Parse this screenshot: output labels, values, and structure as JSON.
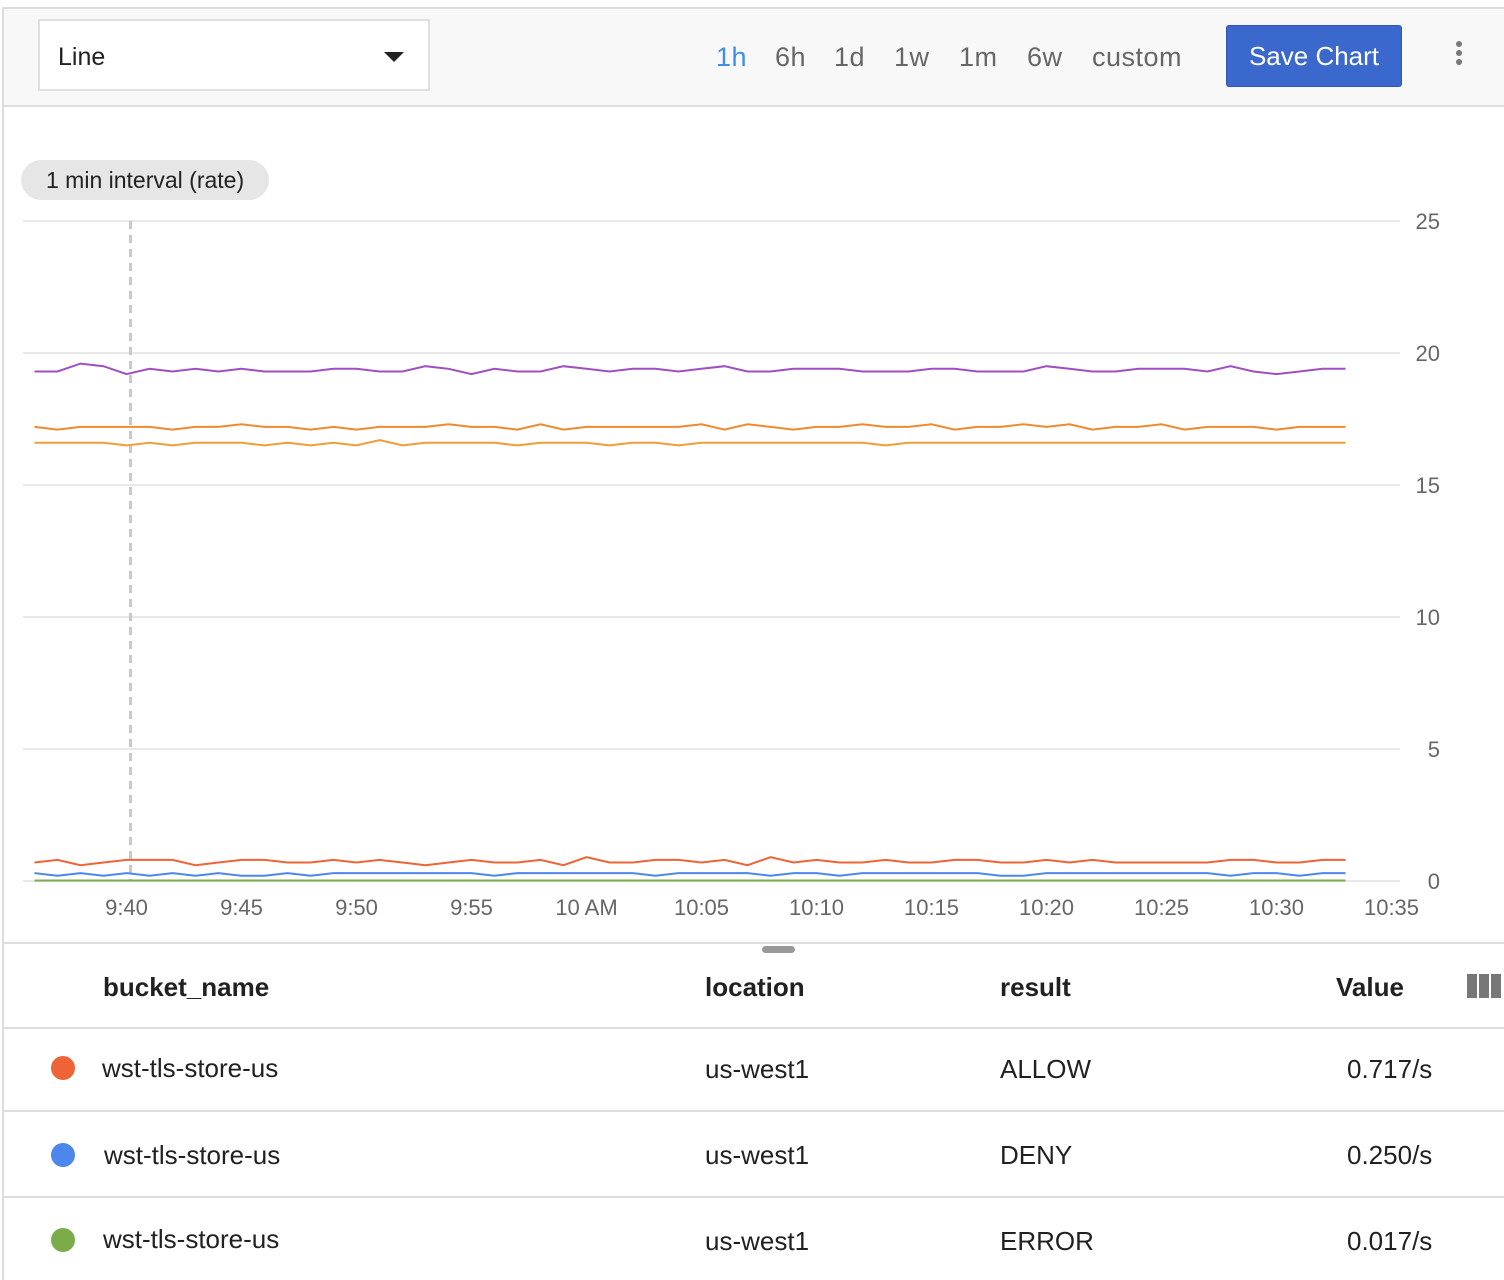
{
  "toolbar": {
    "chart_type": "Line",
    "ranges": [
      {
        "label": "1h",
        "active": true
      },
      {
        "label": "6h",
        "active": false
      },
      {
        "label": "1d",
        "active": false
      },
      {
        "label": "1w",
        "active": false
      },
      {
        "label": "1m",
        "active": false
      },
      {
        "label": "6w",
        "active": false
      },
      {
        "label": "custom",
        "active": false
      }
    ],
    "save_label": "Save Chart",
    "more_icon": "more-vert-icon"
  },
  "chip": "1 min interval (rate)",
  "chart_data": {
    "type": "line",
    "x_start": "9:36",
    "x_step_minutes": 1,
    "xlim": [
      "9:35:30",
      "10:35:30"
    ],
    "ylim": [
      0,
      25
    ],
    "x_ticks": [
      "9:40",
      "9:45",
      "9:50",
      "9:55",
      "10 AM",
      "10:05",
      "10:10",
      "10:15",
      "10:20",
      "10:25",
      "10:30",
      "10:35"
    ],
    "y_ticks": [
      "0",
      "5",
      "10",
      "15",
      "20",
      "25"
    ],
    "y_axis_position": "right",
    "grid": true,
    "cursor_time": "9:40",
    "series": [
      {
        "color": "#a04fc0",
        "values": [
          19.3,
          19.3,
          19.6,
          19.5,
          19.2,
          19.4,
          19.3,
          19.4,
          19.3,
          19.4,
          19.3,
          19.3,
          19.3,
          19.4,
          19.4,
          19.3,
          19.3,
          19.5,
          19.4,
          19.2,
          19.4,
          19.3,
          19.3,
          19.5,
          19.4,
          19.3,
          19.4,
          19.4,
          19.3,
          19.4,
          19.5,
          19.3,
          19.3,
          19.4,
          19.4,
          19.4,
          19.3,
          19.3,
          19.3,
          19.4,
          19.4,
          19.3,
          19.3,
          19.3,
          19.5,
          19.4,
          19.3,
          19.3,
          19.4,
          19.4,
          19.4,
          19.3,
          19.5,
          19.3,
          19.2,
          19.3,
          19.4,
          19.4
        ]
      },
      {
        "color": "#ef8a2e",
        "values": [
          17.2,
          17.1,
          17.2,
          17.2,
          17.2,
          17.2,
          17.1,
          17.2,
          17.2,
          17.3,
          17.2,
          17.2,
          17.1,
          17.2,
          17.1,
          17.2,
          17.2,
          17.2,
          17.3,
          17.2,
          17.2,
          17.1,
          17.3,
          17.1,
          17.2,
          17.2,
          17.2,
          17.2,
          17.2,
          17.3,
          17.1,
          17.3,
          17.2,
          17.1,
          17.2,
          17.2,
          17.3,
          17.2,
          17.2,
          17.3,
          17.1,
          17.2,
          17.2,
          17.3,
          17.2,
          17.3,
          17.1,
          17.2,
          17.2,
          17.3,
          17.1,
          17.2,
          17.2,
          17.2,
          17.1,
          17.2,
          17.2,
          17.2
        ]
      },
      {
        "color": "#f39c3a",
        "values": [
          16.6,
          16.6,
          16.6,
          16.6,
          16.5,
          16.6,
          16.5,
          16.6,
          16.6,
          16.6,
          16.5,
          16.6,
          16.5,
          16.6,
          16.5,
          16.7,
          16.5,
          16.6,
          16.6,
          16.6,
          16.6,
          16.5,
          16.6,
          16.6,
          16.6,
          16.5,
          16.6,
          16.6,
          16.5,
          16.6,
          16.6,
          16.6,
          16.6,
          16.6,
          16.6,
          16.6,
          16.6,
          16.5,
          16.6,
          16.6,
          16.6,
          16.6,
          16.6,
          16.6,
          16.6,
          16.6,
          16.6,
          16.6,
          16.6,
          16.6,
          16.6,
          16.6,
          16.6,
          16.6,
          16.6,
          16.6,
          16.6,
          16.6
        ]
      },
      {
        "color": "#ee6436",
        "values": [
          0.7,
          0.8,
          0.6,
          0.7,
          0.8,
          0.8,
          0.8,
          0.6,
          0.7,
          0.8,
          0.8,
          0.7,
          0.7,
          0.8,
          0.7,
          0.8,
          0.7,
          0.6,
          0.7,
          0.8,
          0.7,
          0.7,
          0.8,
          0.6,
          0.9,
          0.7,
          0.7,
          0.8,
          0.8,
          0.7,
          0.8,
          0.6,
          0.9,
          0.7,
          0.8,
          0.7,
          0.7,
          0.8,
          0.7,
          0.7,
          0.8,
          0.8,
          0.7,
          0.7,
          0.8,
          0.7,
          0.8,
          0.7,
          0.7,
          0.7,
          0.7,
          0.7,
          0.8,
          0.8,
          0.7,
          0.7,
          0.8,
          0.8
        ]
      },
      {
        "color": "#4d86ec",
        "values": [
          0.3,
          0.2,
          0.3,
          0.2,
          0.3,
          0.2,
          0.3,
          0.2,
          0.3,
          0.2,
          0.2,
          0.3,
          0.2,
          0.3,
          0.3,
          0.3,
          0.3,
          0.3,
          0.3,
          0.3,
          0.2,
          0.3,
          0.3,
          0.3,
          0.3,
          0.3,
          0.3,
          0.2,
          0.3,
          0.3,
          0.3,
          0.3,
          0.2,
          0.3,
          0.3,
          0.2,
          0.3,
          0.3,
          0.3,
          0.3,
          0.3,
          0.3,
          0.2,
          0.2,
          0.3,
          0.3,
          0.3,
          0.3,
          0.3,
          0.3,
          0.3,
          0.3,
          0.2,
          0.3,
          0.3,
          0.2,
          0.3,
          0.3
        ]
      },
      {
        "color": "#7cab4c",
        "values": [
          0.02,
          0.02,
          0.02,
          0.02,
          0.02,
          0.02,
          0.02,
          0.02,
          0.02,
          0.02,
          0.02,
          0.02,
          0.02,
          0.02,
          0.02,
          0.02,
          0.02,
          0.02,
          0.02,
          0.02,
          0.02,
          0.02,
          0.02,
          0.02,
          0.02,
          0.02,
          0.02,
          0.02,
          0.02,
          0.02,
          0.02,
          0.02,
          0.02,
          0.02,
          0.02,
          0.02,
          0.02,
          0.02,
          0.02,
          0.02,
          0.02,
          0.02,
          0.02,
          0.02,
          0.02,
          0.02,
          0.02,
          0.02,
          0.02,
          0.02,
          0.02,
          0.02,
          0.02,
          0.02,
          0.02,
          0.02,
          0.02,
          0.02
        ]
      }
    ]
  },
  "table": {
    "headers": {
      "bucket_name": "bucket_name",
      "location": "location",
      "result": "result",
      "value": "Value"
    },
    "rows": [
      {
        "color": "#ee6436",
        "bucket_name": "wst-tls-store-us",
        "location": "us-west1",
        "result": "ALLOW",
        "value": "0.717/s"
      },
      {
        "color": "#4d86ec",
        "bucket_name": "wst-tls-store-us",
        "location": "us-west1",
        "result": "DENY",
        "value": "0.250/s"
      },
      {
        "color": "#7cab4c",
        "bucket_name": "wst-tls-store-us",
        "location": "us-west1",
        "result": "ERROR",
        "value": "0.017/s"
      }
    ]
  }
}
